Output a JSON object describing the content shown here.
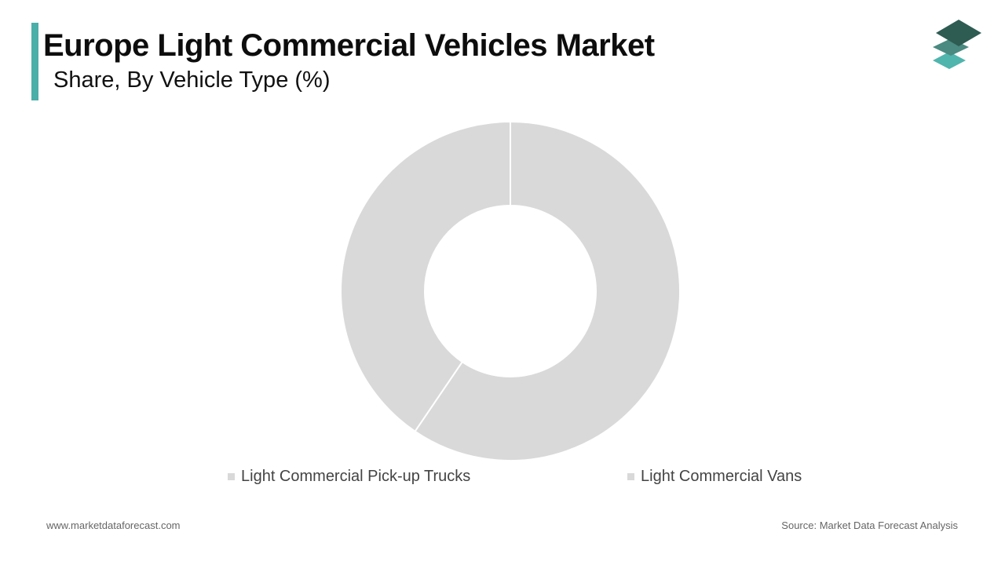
{
  "header": {
    "title": "Europe Light Commercial Vehicles Market",
    "subtitle": "Share, By Vehicle Type (%)",
    "accent_color": "#4aaea9"
  },
  "logo": {
    "icon": "stacked-layers-logo-icon",
    "colors": [
      "#2e5c52",
      "#4a8a80",
      "#4fb5ad"
    ]
  },
  "chart_data": {
    "type": "pie",
    "variant": "donut",
    "title": "Europe Light Commercial Vehicles Market",
    "subtitle": "Share, By Vehicle Type (%)",
    "categories": [
      "Light Commercial Vans",
      "Light Commercial Pick-up Trucks"
    ],
    "values": [
      59.5,
      40.5
    ],
    "colors": [
      "#d9d9d9",
      "#d9d9d9"
    ],
    "slice_border_color": "#ffffff",
    "legend_position": "bottom",
    "legend": [
      "Light Commercial Pick-up Trucks",
      "Light Commercial Vans"
    ],
    "data_labels": false
  },
  "footer": {
    "website": "www.marketdataforecast.com",
    "source": "Source: Market Data Forecast Analysis"
  }
}
